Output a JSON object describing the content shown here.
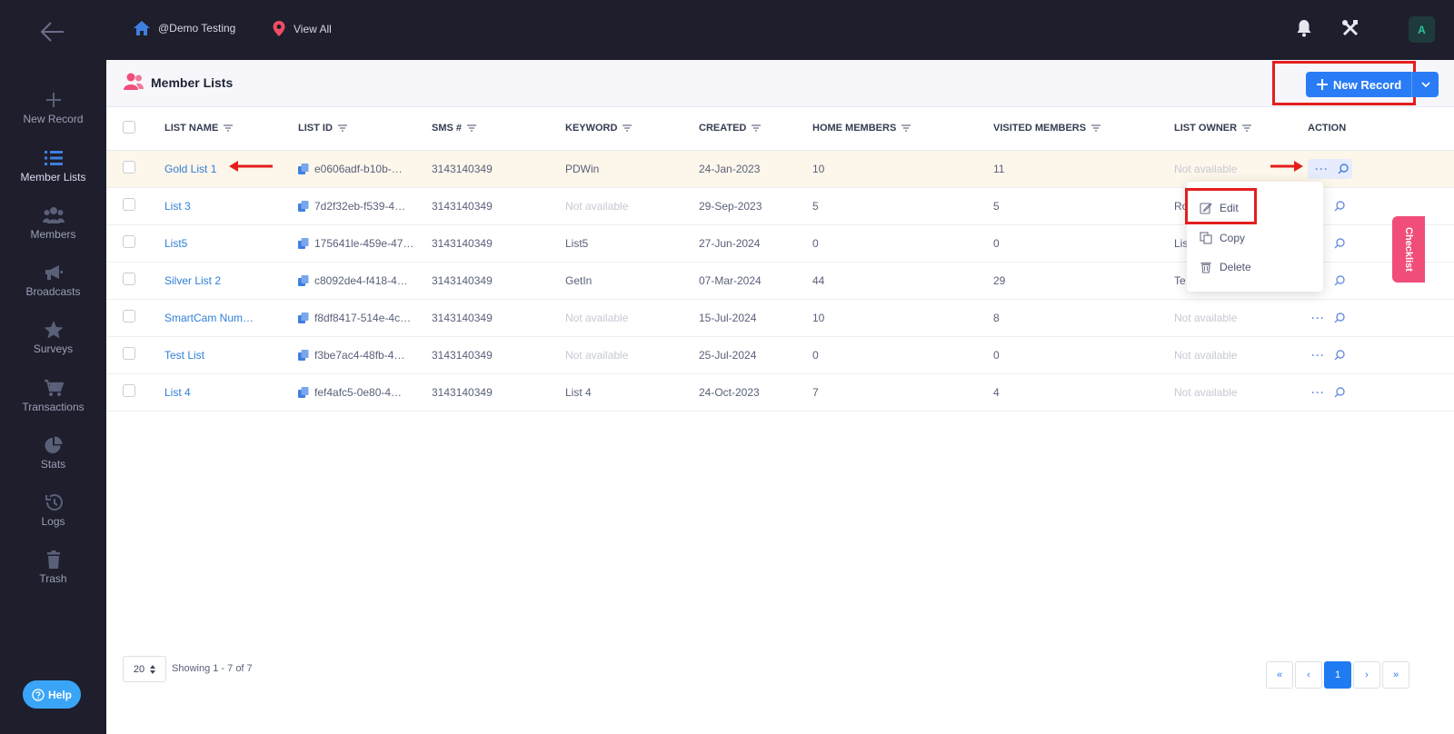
{
  "topbar": {
    "org_label": "@Demo Testing",
    "location_label": "View All",
    "avatar_initial": "A"
  },
  "sidebar": {
    "items": [
      {
        "label": "New Record",
        "icon": "plus-icon"
      },
      {
        "label": "Member Lists",
        "icon": "list-icon"
      },
      {
        "label": "Members",
        "icon": "users-icon"
      },
      {
        "label": "Broadcasts",
        "icon": "megaphone-icon"
      },
      {
        "label": "Surveys",
        "icon": "star-icon"
      },
      {
        "label": "Transactions",
        "icon": "cart-icon"
      },
      {
        "label": "Stats",
        "icon": "pie-chart-icon"
      },
      {
        "label": "Logs",
        "icon": "history-icon"
      },
      {
        "label": "Trash",
        "icon": "trash-icon"
      }
    ],
    "help_label": "Help"
  },
  "header": {
    "title": "Member Lists",
    "new_record_label": "New Record"
  },
  "table": {
    "columns": [
      "LIST NAME",
      "LIST ID",
      "SMS #",
      "KEYWORD",
      "CREATED",
      "HOME MEMBERS",
      "VISITED MEMBERS",
      "LIST OWNER",
      "ACTION"
    ],
    "rows": [
      {
        "name": "Gold List 1",
        "id": "e0606adf-b10b-…",
        "sms": "3143140349",
        "keyword": "PDWin",
        "created": "24-Jan-2023",
        "home": "10",
        "visited": "11",
        "owner": "Not available"
      },
      {
        "name": "List 3",
        "id": "7d2f32eb-f539-4…",
        "sms": "3143140349",
        "keyword": "Not available",
        "created": "29-Sep-2023",
        "home": "5",
        "visited": "5",
        "owner": "Ro"
      },
      {
        "name": "List5",
        "id": "175641le-459e-47…",
        "sms": "3143140349",
        "keyword": "List5",
        "created": "27-Jun-2024",
        "home": "0",
        "visited": "0",
        "owner": "Lis"
      },
      {
        "name": "Silver List 2",
        "id": "c8092de4-f418-4…",
        "sms": "3143140349",
        "keyword": "GetIn",
        "created": "07-Mar-2024",
        "home": "44",
        "visited": "29",
        "owner": "Te"
      },
      {
        "name": "SmartCam Num…",
        "id": "f8df8417-514e-4c…",
        "sms": "3143140349",
        "keyword": "Not available",
        "created": "15-Jul-2024",
        "home": "10",
        "visited": "8",
        "owner": "Not available"
      },
      {
        "name": "Test List",
        "id": "f3be7ac4-48fb-4…",
        "sms": "3143140349",
        "keyword": "Not available",
        "created": "25-Jul-2024",
        "home": "0",
        "visited": "0",
        "owner": "Not available"
      },
      {
        "name": "List 4",
        "id": "fef4afc5-0e80-4…",
        "sms": "3143140349",
        "keyword": "List 4",
        "created": "24-Oct-2023",
        "home": "7",
        "visited": "4",
        "owner": "Not available"
      }
    ]
  },
  "action_menu": {
    "edit": "Edit",
    "copy": "Copy",
    "delete": "Delete"
  },
  "checklist_label": "Checklist",
  "footer": {
    "page_size": "20",
    "showing": "Showing 1 - 7 of 7",
    "pages": [
      "«",
      "‹",
      "1",
      "›",
      "»"
    ]
  },
  "colors": {
    "sidebar_bg": "#1e1e2d",
    "accent": "#2a7cf6",
    "highlight_row": "#fdf6ea",
    "annotation_red": "#e41e1e",
    "checklist": "#f04d78"
  }
}
